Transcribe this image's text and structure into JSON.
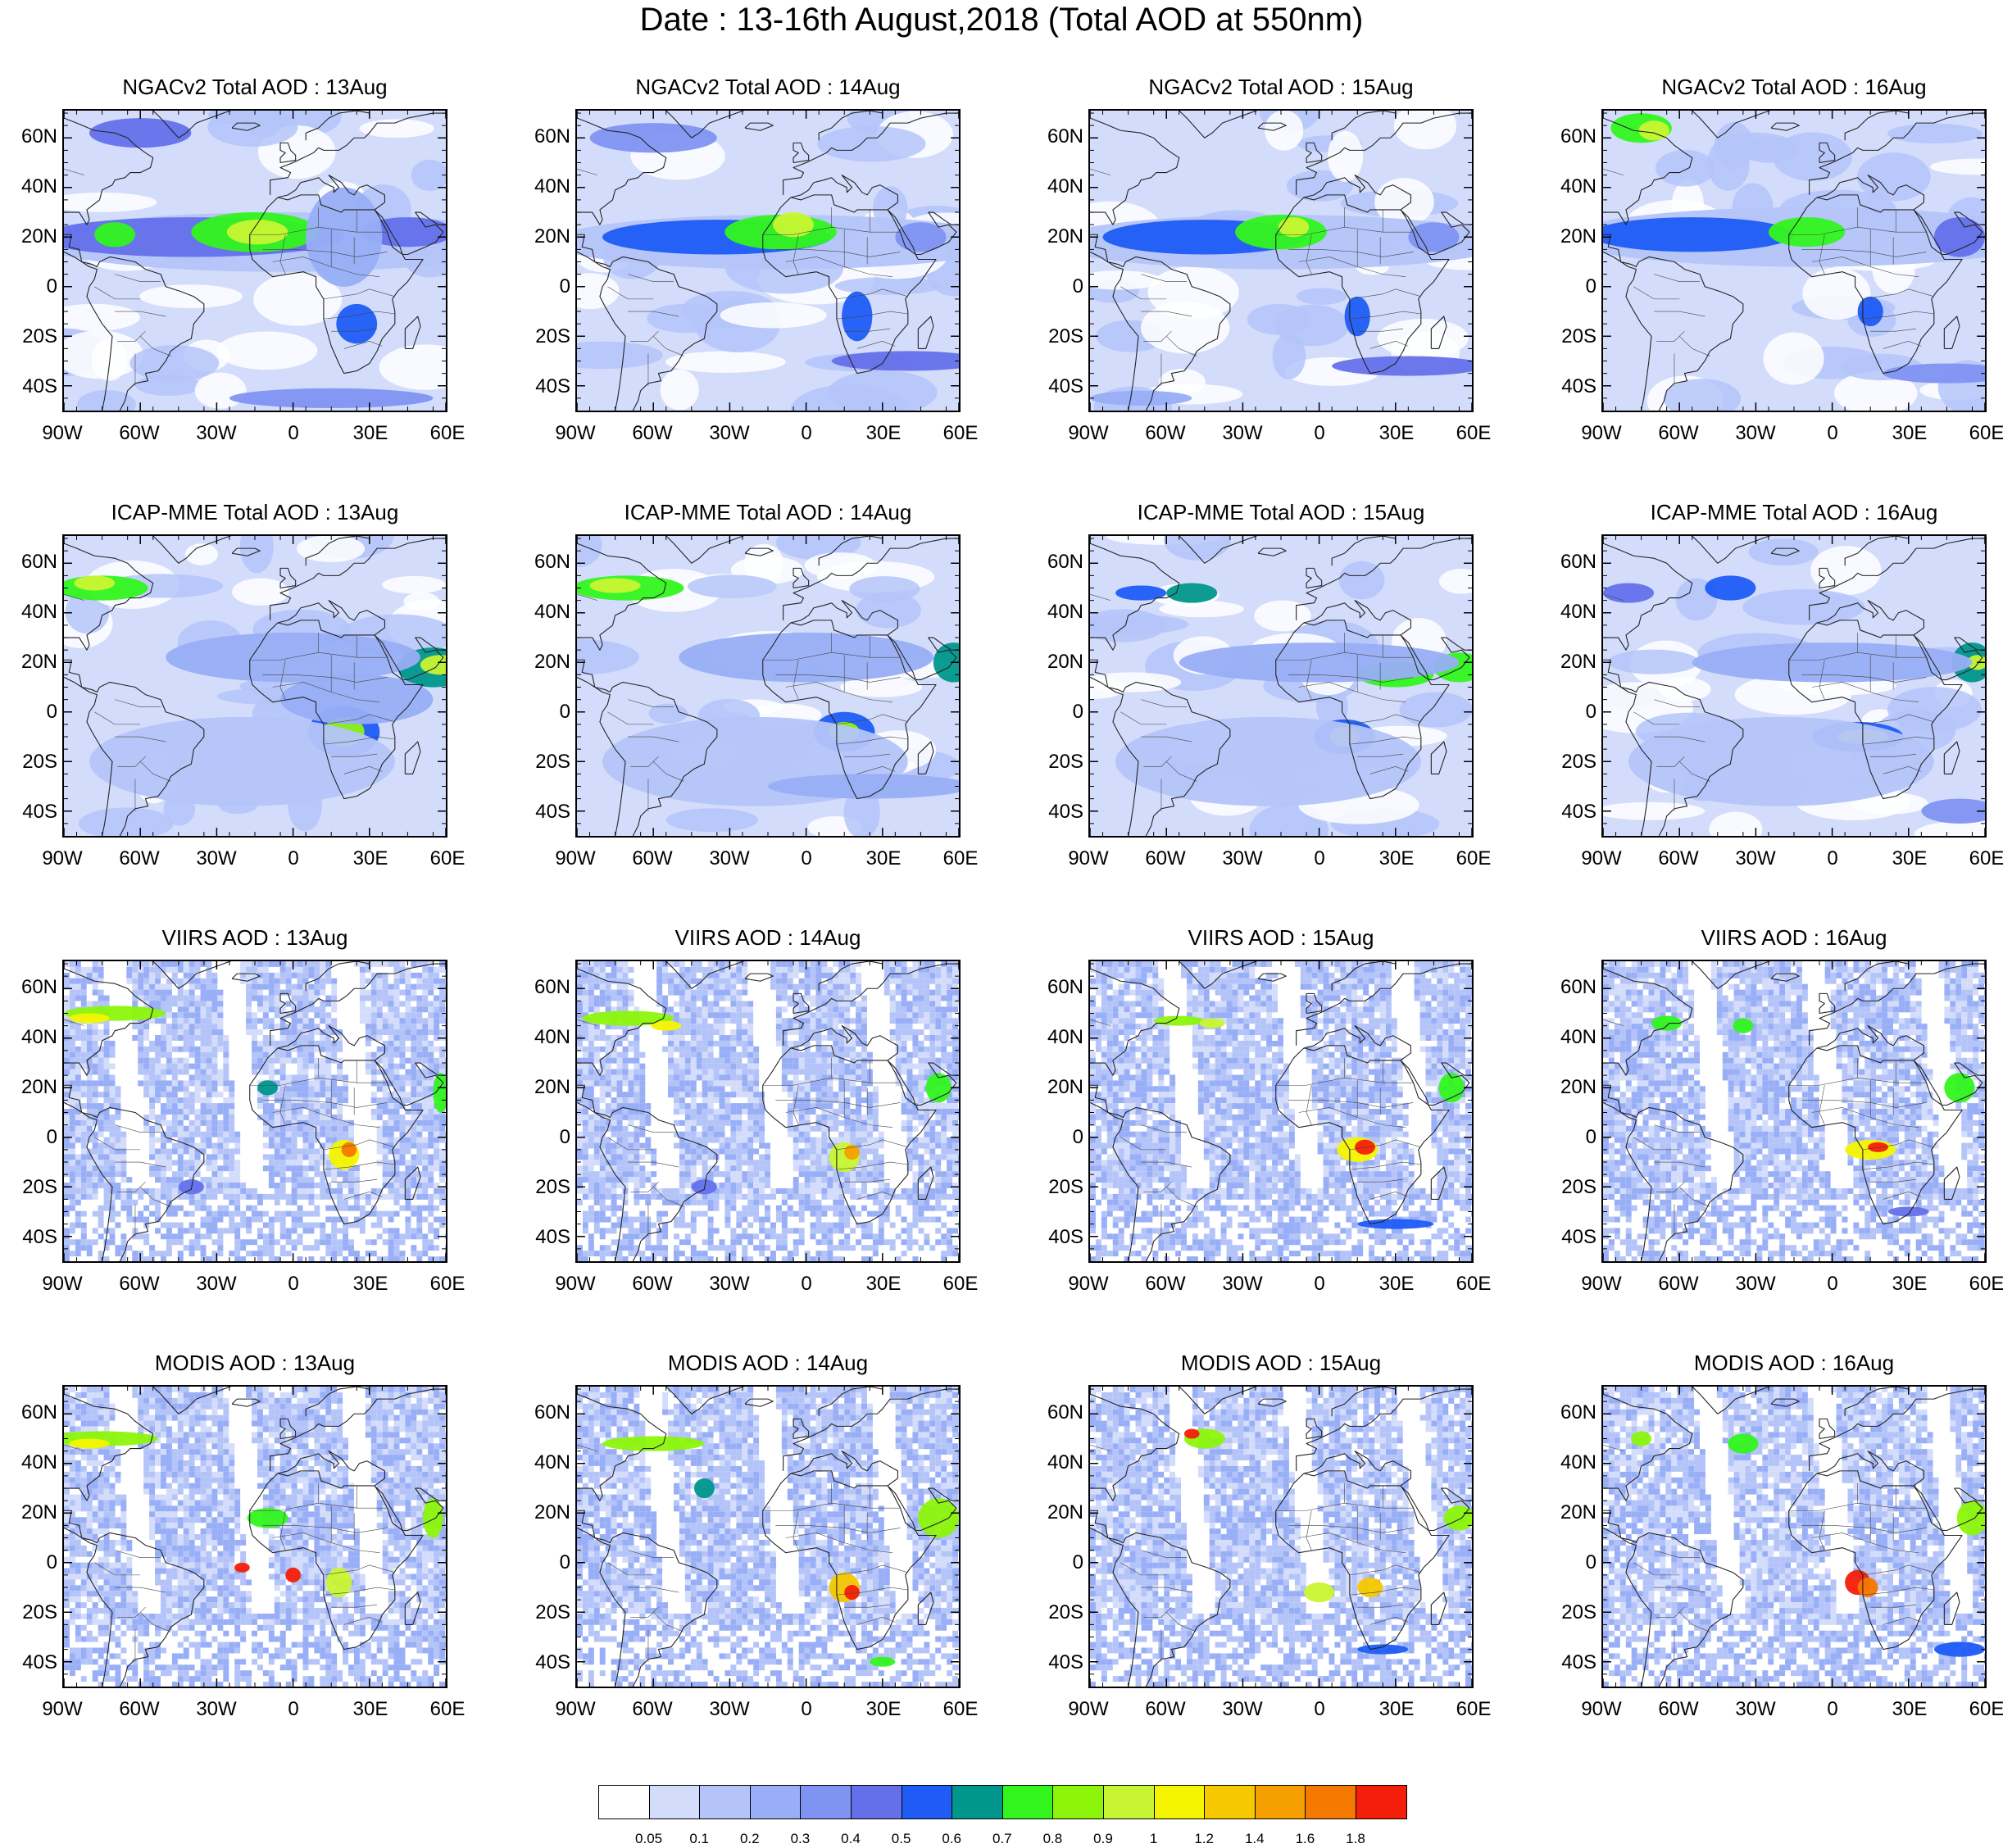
{
  "title": "Date : 13-16th August,2018 (Total AOD at 550nm)",
  "axis_labels": {
    "latitude": [
      "60N",
      "40N",
      "20N",
      "0",
      "20S",
      "40S"
    ],
    "longitude": [
      "90W",
      "60W",
      "30W",
      "0",
      "30E",
      "60E"
    ]
  },
  "rows": [
    {
      "kind": "model",
      "titles": [
        "NGACv2 Total AOD : 13Aug",
        "NGACv2 Total AOD : 14Aug",
        "NGACv2 Total AOD : 15Aug",
        "NGACv2 Total AOD : 16Aug"
      ]
    },
    {
      "kind": "model",
      "titles": [
        "ICAP-MME Total AOD : 13Aug",
        "ICAP-MME Total AOD : 14Aug",
        "ICAP-MME Total AOD : 15Aug",
        "ICAP-MME Total AOD : 16Aug"
      ]
    },
    {
      "kind": "satellite",
      "titles": [
        "VIIRS AOD : 13Aug",
        "VIIRS AOD : 14Aug",
        "VIIRS AOD : 15Aug",
        "VIIRS AOD : 16Aug"
      ]
    },
    {
      "kind": "satellite",
      "titles": [
        "MODIS AOD : 13Aug",
        "MODIS AOD : 14Aug",
        "MODIS AOD : 15Aug",
        "MODIS AOD : 16Aug"
      ]
    }
  ],
  "colorbar": {
    "labels": [
      "0.05",
      "0.1",
      "0.2",
      "0.3",
      "0.4",
      "0.5",
      "0.6",
      "0.7",
      "0.8",
      "0.9",
      "1",
      "1.2",
      "1.4",
      "1.6",
      "1.8"
    ],
    "colors": [
      "#ffffff",
      "#d3dcfb",
      "#b4c4f9",
      "#98aef6",
      "#7f93f2",
      "#6470ea",
      "#1e5cf5",
      "#00968c",
      "#32f51e",
      "#8cf50a",
      "#c8f532",
      "#f5f500",
      "#f5c800",
      "#f5a000",
      "#f57800",
      "#f51e0a"
    ]
  }
}
